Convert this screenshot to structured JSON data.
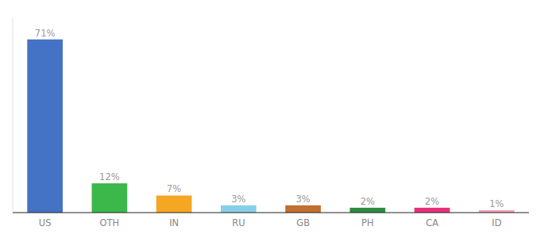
{
  "chart_data": {
    "type": "bar",
    "categories": [
      "US",
      "OTH",
      "IN",
      "RU",
      "GB",
      "PH",
      "CA",
      "ID"
    ],
    "values": [
      71,
      12,
      7,
      3,
      3,
      2,
      2,
      1
    ],
    "value_labels": [
      "71%",
      "12%",
      "7%",
      "3%",
      "3%",
      "2%",
      "2%",
      "1%"
    ],
    "colors": [
      "#4472c4",
      "#3cb84a",
      "#f5a623",
      "#87ceeb",
      "#c07030",
      "#2e8b40",
      "#e8307a",
      "#f4a0b8"
    ],
    "ylim": [
      0,
      80
    ],
    "data_labels": true,
    "tick_labels": "x",
    "grid": false
  }
}
